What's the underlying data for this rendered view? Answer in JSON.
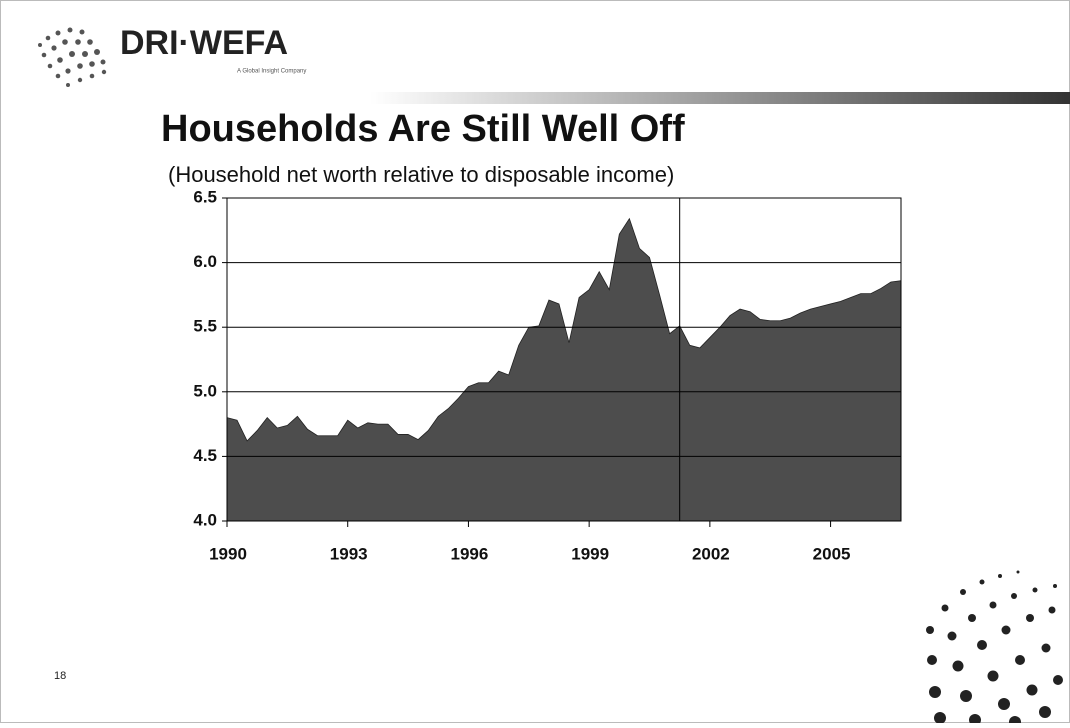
{
  "logo": "DRI·WEFA",
  "tagline": "A Global Insight Company",
  "page_number": "18",
  "chart_data": {
    "type": "area",
    "title": "Households Are Still Well Off",
    "subtitle": "(Household net worth relative to disposable income)",
    "color": "#4d4d4d",
    "x": [
      1990,
      1990.25,
      1990.5,
      1990.75,
      1991,
      1991.25,
      1991.5,
      1991.75,
      1992,
      1992.25,
      1992.5,
      1992.75,
      1993,
      1993.25,
      1993.5,
      1993.75,
      1994,
      1994.25,
      1994.5,
      1994.75,
      1995,
      1995.25,
      1995.5,
      1995.75,
      1996,
      1996.25,
      1996.5,
      1996.75,
      1997,
      1997.25,
      1997.5,
      1997.75,
      1998,
      1998.25,
      1998.5,
      1998.75,
      1999,
      1999.25,
      1999.5,
      1999.75,
      2000,
      2000.25,
      2000.5,
      2000.75,
      2001,
      2001.25,
      2001.5,
      2001.75,
      2002,
      2002.25,
      2002.5,
      2002.75,
      2003,
      2003.25,
      2003.5,
      2003.75,
      2004,
      2004.25,
      2004.5,
      2004.75,
      2005,
      2005.25,
      2005.5,
      2005.75,
      2006,
      2006.25,
      2006.5,
      2006.75
    ],
    "values": [
      4.8,
      4.78,
      4.62,
      4.7,
      4.8,
      4.72,
      4.74,
      4.81,
      4.71,
      4.66,
      4.66,
      4.66,
      4.78,
      4.72,
      4.76,
      4.75,
      4.75,
      4.67,
      4.67,
      4.63,
      4.7,
      4.81,
      4.87,
      4.95,
      5.04,
      5.07,
      5.07,
      5.16,
      5.13,
      5.36,
      5.5,
      5.51,
      5.71,
      5.68,
      5.38,
      5.73,
      5.79,
      5.93,
      5.79,
      6.22,
      6.34,
      6.11,
      6.04,
      5.75,
      5.45,
      5.51,
      5.36,
      5.34,
      5.42,
      5.5,
      5.59,
      5.64,
      5.62,
      5.56,
      5.55,
      5.55,
      5.57,
      5.61,
      5.64,
      5.66,
      5.68,
      5.7,
      5.73,
      5.76,
      5.76,
      5.8,
      5.85,
      5.86
    ],
    "xlim": [
      1990,
      2006.75
    ],
    "xticks": [
      1990,
      1993,
      1996,
      1999,
      2002,
      2005
    ],
    "ylim": [
      4,
      6.5
    ],
    "yticks": [
      {
        "value": 4,
        "label": "4.0"
      },
      4.5,
      {
        "value": 5,
        "label": "5.0"
      },
      5.5,
      {
        "value": 6,
        "label": "6.0"
      },
      6.5
    ],
    "grid": true,
    "vline": 2001.25
  }
}
